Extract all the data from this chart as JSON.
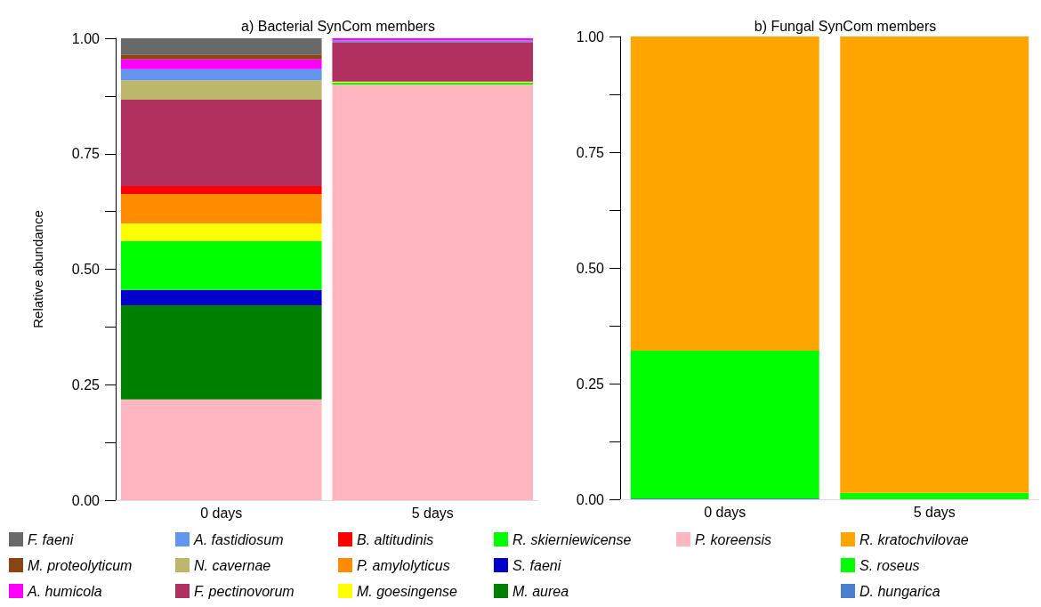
{
  "chart_data": [
    {
      "type": "bar",
      "title": "a) Bacterial SynCom members",
      "ylabel": "Relative abundance",
      "stacked": true,
      "categories": [
        "0 days",
        "5 days"
      ],
      "ylim": [
        0,
        1
      ],
      "yticks": [
        {
          "value": 0,
          "label": "0.00"
        },
        {
          "value": 0.125,
          "label": null
        },
        {
          "value": 0.25,
          "label": "0.25"
        },
        {
          "value": 0.375,
          "label": null
        },
        {
          "value": 0.5,
          "label": "0.50"
        },
        {
          "value": 0.625,
          "label": null
        },
        {
          "value": 0.75,
          "label": "0.75"
        },
        {
          "value": 0.875,
          "label": null
        },
        {
          "value": 1,
          "label": "1.00"
        }
      ],
      "grid": false,
      "legend": "bottom",
      "series": [
        {
          "name": "P. koreensis",
          "color": "#ffb6c1",
          "values": [
            0.218,
            0.9
          ]
        },
        {
          "name": "M. aurea",
          "color": "#008000",
          "values": [
            0.204,
            0
          ]
        },
        {
          "name": "S. faeni",
          "color": "#0000cd",
          "values": [
            0.033,
            0
          ]
        },
        {
          "name": "R. skierniewicense",
          "color": "#00ff00",
          "values": [
            0.106,
            0.004
          ]
        },
        {
          "name": "M. goesingense",
          "color": "#ffff00",
          "values": [
            0.038,
            0.002
          ]
        },
        {
          "name": "P. amylolyticus",
          "color": "#ff8c00",
          "values": [
            0.064,
            0
          ]
        },
        {
          "name": "B. altitudinis",
          "color": "#ff0000",
          "values": [
            0.017,
            0
          ]
        },
        {
          "name": "F. pectinovorum",
          "color": "#b03060",
          "values": [
            0.187,
            0.086
          ]
        },
        {
          "name": "N. cavernae",
          "color": "#bdb76b",
          "values": [
            0.042,
            0
          ]
        },
        {
          "name": "A. fastidiosum",
          "color": "#6495ed",
          "values": [
            0.024,
            0.003
          ]
        },
        {
          "name": "A. humicola",
          "color": "#ff00ff",
          "values": [
            0.021,
            0.005
          ]
        },
        {
          "name": "M. proteolyticum",
          "color": "#8b4513",
          "values": [
            0.011,
            0
          ]
        },
        {
          "name": "F. faeni",
          "color": "#696969",
          "values": [
            0.035,
            0
          ]
        }
      ]
    },
    {
      "type": "bar",
      "title": "b) Fungal SynCom members",
      "stacked": true,
      "categories": [
        "0 days",
        "5 days"
      ],
      "ylim": [
        0,
        1
      ],
      "yticks": [
        {
          "value": 0,
          "label": "0.00"
        },
        {
          "value": 0.125,
          "label": null
        },
        {
          "value": 0.25,
          "label": "0.25"
        },
        {
          "value": 0.375,
          "label": null
        },
        {
          "value": 0.5,
          "label": "0.50"
        },
        {
          "value": 0.625,
          "label": null
        },
        {
          "value": 0.75,
          "label": "0.75"
        },
        {
          "value": 0.875,
          "label": null
        },
        {
          "value": 1,
          "label": "1.00"
        }
      ],
      "grid": false,
      "legend": "bottom",
      "series": [
        {
          "name": "D. hungarica",
          "color": "#4a7fd0",
          "values": [
            0.002,
            0
          ]
        },
        {
          "name": "S. roseus",
          "color": "#00ff00",
          "values": [
            0.319,
            0.014
          ]
        },
        {
          "name": "R. kratochvilovae",
          "color": "#ffa500",
          "values": [
            0.679,
            0.986
          ]
        }
      ]
    }
  ]
}
